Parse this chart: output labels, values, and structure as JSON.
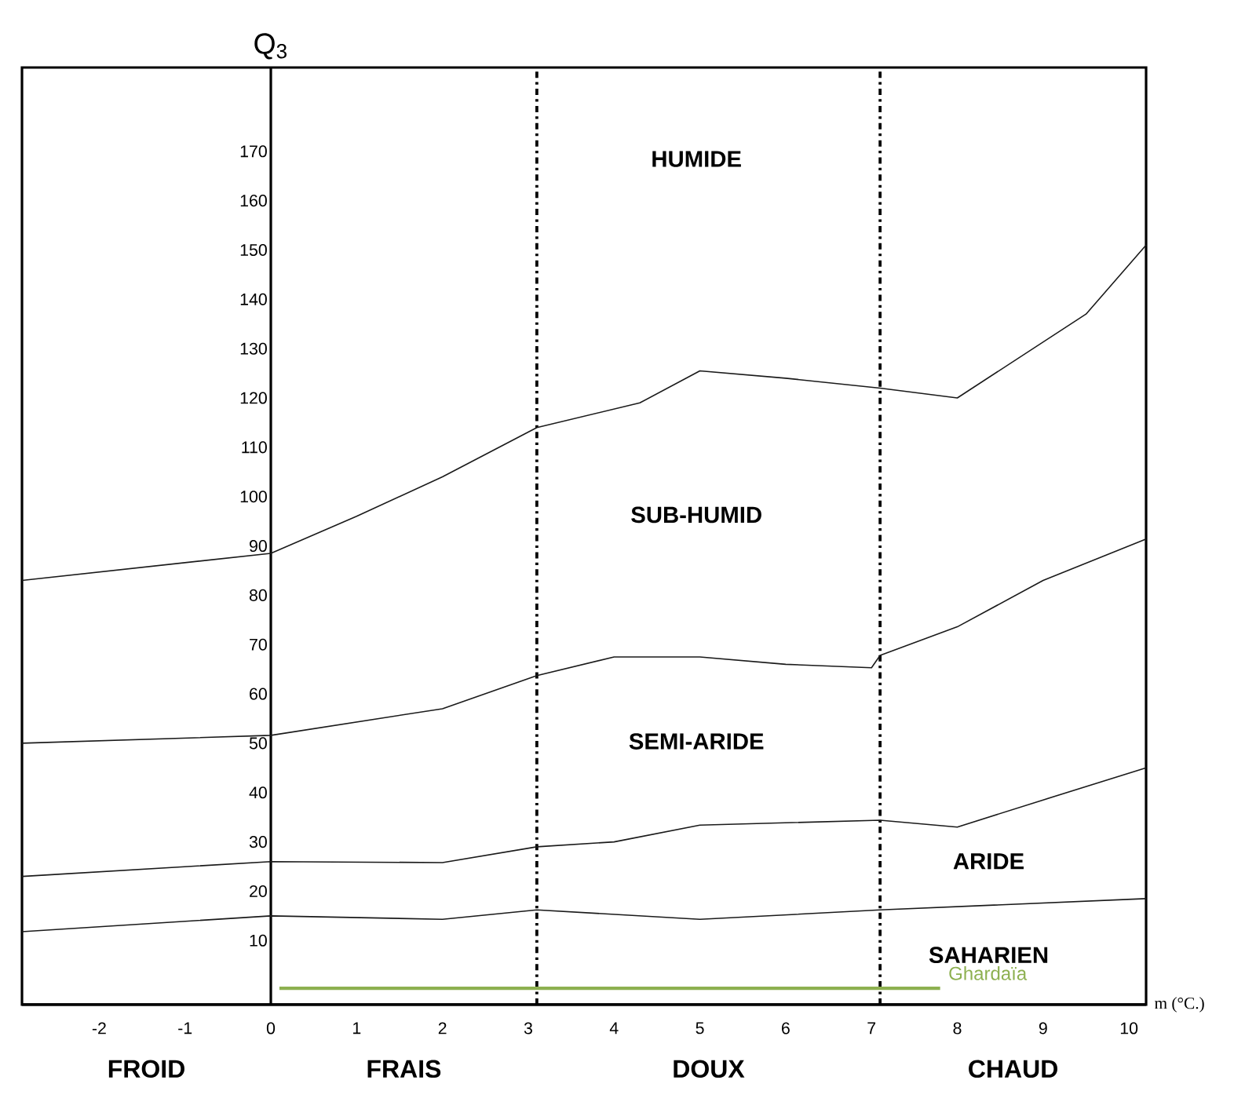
{
  "chart_data": {
    "type": "line",
    "xlabel": "m (°C.)",
    "ylabel": "Q$_{3}$",
    "xlim": [
      -2.9,
      10.2
    ],
    "ylim": [
      -3,
      187
    ],
    "xticks": [
      -2,
      -1,
      0,
      1,
      2,
      3,
      4,
      5,
      6,
      7,
      8,
      9,
      10
    ],
    "yticks": [
      10,
      20,
      30,
      40,
      50,
      60,
      70,
      80,
      90,
      100,
      110,
      120,
      130,
      140,
      150,
      160,
      170
    ],
    "grid": false,
    "legend": false,
    "marker": "none",
    "series": [
      {
        "color": "#1a1a1a",
        "line_style": "solid",
        "x": [
          -2.9,
          0,
          1,
          2,
          3.1,
          4.3,
          5,
          6,
          7.1,
          8,
          9.5,
          10.2
        ],
        "values": [
          83,
          88.5,
          96,
          104,
          114,
          119,
          125.5,
          124,
          122,
          120,
          137,
          151
        ]
      },
      {
        "color": "#1a1a1a",
        "line_style": "solid",
        "x": [
          -2.9,
          0,
          2,
          3.1,
          4,
          5,
          6,
          7,
          7.1,
          8,
          9,
          10.2
        ],
        "values": [
          50,
          51.6,
          57,
          63.7,
          67.5,
          67.5,
          66,
          65.3,
          67.8,
          73.6,
          83,
          91.4
        ]
      },
      {
        "color": "#1a1a1a",
        "line_style": "solid",
        "x": [
          -2.9,
          0,
          2,
          3.1,
          4,
          5,
          7.1,
          8,
          9,
          10.2
        ],
        "values": [
          23,
          26,
          25.8,
          29,
          30,
          33.4,
          34.4,
          33,
          38.5,
          45
        ]
      },
      {
        "color": "#1a1a1a",
        "line_style": "solid",
        "x": [
          -2.9,
          0,
          2,
          3.1,
          5,
          7.1,
          10.2
        ],
        "values": [
          11.8,
          15,
          14.3,
          16.2,
          14.3,
          16.2,
          18.5
        ]
      },
      {
        "name": "Ghardaïa",
        "color": "#8db050",
        "line_style": "solid",
        "x": [
          0.1,
          7.8
        ],
        "values": [
          0.3,
          0.3
        ]
      }
    ],
    "ref_lines": [
      {
        "axis": "x",
        "value": 3.1,
        "line_style": "dashed"
      },
      {
        "axis": "x",
        "value": 7.1,
        "line_style": "dashed"
      }
    ],
    "annotations": [
      "HUMIDE",
      "SUB-HUMID",
      "SEMI-ARIDE",
      "ARIDE",
      "SAHARIEN",
      "FROID",
      "FRAIS",
      "DOUX",
      "CHAUD"
    ]
  }
}
